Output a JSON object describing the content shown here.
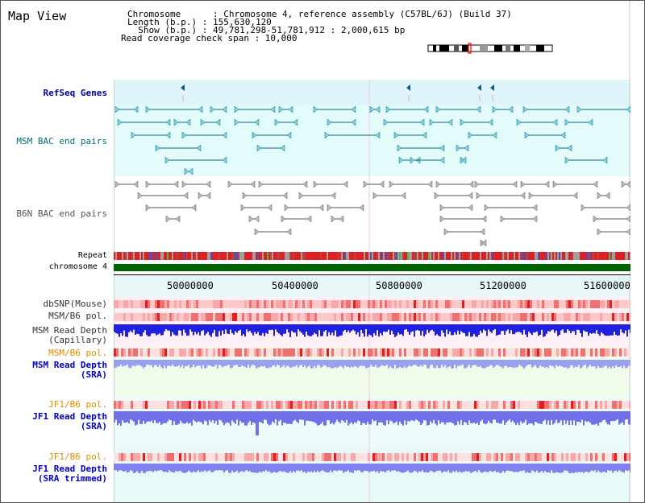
{
  "map_view": {
    "title": "Map View"
  },
  "header": {
    "chromosome_line": "Chromosome      : Chromosome 4, reference assembly (C57BL/6J) (Build 37)",
    "length_line": "Length (b.p.) : 155,630,120",
    "show_line": "  Show (b.p.) : 49,781,298-51,781,912 : 2,000,615 bp",
    "coverage_line": "Read coverage check span : 10,000"
  },
  "tracks": {
    "refseq": {
      "label": "RefSeq Genes",
      "color": "#0000a0"
    },
    "msm_bac": {
      "label": "MSM BAC end pairs",
      "color": "#006a7a"
    },
    "b6n_bac": {
      "label": "B6N BAC end pairs",
      "color": "#555555"
    },
    "repeat": {
      "label": "Repeat"
    },
    "chromosome": {
      "label": "chromosome 4",
      "color": "#006400"
    },
    "dbsnp": {
      "label": "dbSNP(Mouse)"
    },
    "msm_b6_pol": {
      "label": "MSM/B6 pol."
    },
    "msm_depth_cap": {
      "line1": "MSM Read Depth",
      "line2": "(Capillary)"
    },
    "msm_b6_pol2": {
      "label": "MSM/B6 pol.",
      "color": "#e08a00"
    },
    "msm_depth_sra": {
      "line1": "MSM Read Depth",
      "line2": "(SRA)",
      "color": "#0000c0"
    },
    "jf1_b6_pol": {
      "label": "JF1/B6 pol.",
      "color": "#e08a00"
    },
    "jf1_depth_sra": {
      "line1": "JF1 Read Depth",
      "line2": "(SRA)",
      "color": "#0000c0"
    },
    "jf1_b6_pol2": {
      "label": "JF1/B6 pol.",
      "color": "#e08a00"
    },
    "jf1_depth_trim": {
      "line1": "JF1 Read Depth",
      "line2": "(SRA trimmed)",
      "color": "#0000c0"
    }
  },
  "ruler": {
    "ticks": [
      "50000000",
      "50400000",
      "50800000",
      "51200000",
      "51600000"
    ]
  }
}
